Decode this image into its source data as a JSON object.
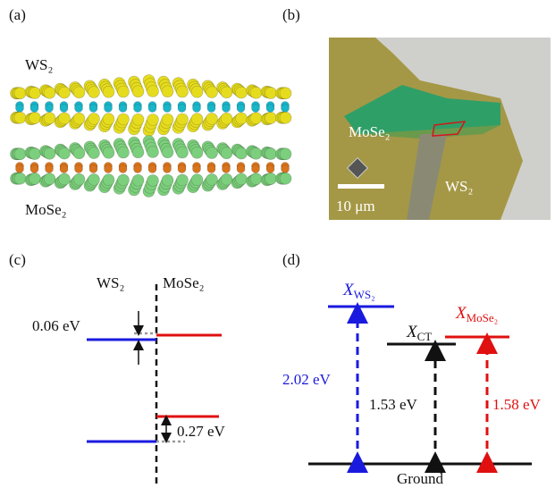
{
  "panels": {
    "a": {
      "label": "(a)",
      "top_layer": "WS₂",
      "bottom_layer": "MoSe₂"
    },
    "b": {
      "label": "(b)",
      "region_1": "MoSe₂",
      "region_2": "WS₂",
      "scale_bar": "10 μm"
    },
    "c": {
      "label": "(c)",
      "left_material": "WS₂",
      "right_material": "MoSe₂",
      "offset_top": "0.06 eV",
      "offset_bottom": "0.27 eV"
    },
    "d": {
      "label": "(d)",
      "levels": [
        {
          "main": "X",
          "sub": "WS₂",
          "energy": "2.02 eV"
        },
        {
          "main": "X",
          "sub": "CT",
          "energy": "1.53 eV"
        },
        {
          "main": "X",
          "sub": "MoSe₂",
          "energy": "1.58 eV"
        }
      ],
      "ground": "Ground"
    }
  }
}
